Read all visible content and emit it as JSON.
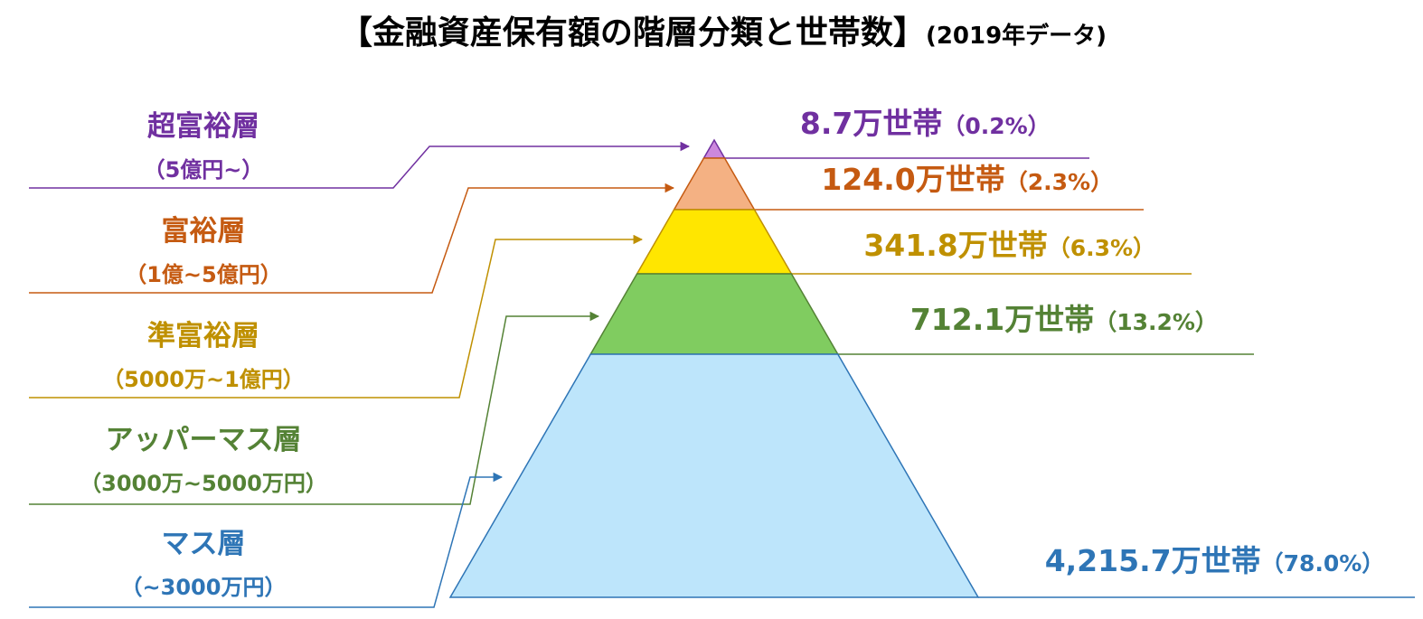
{
  "title": "【金融資産保有額の階層分類と世帯数】",
  "subtitle": "(2019年データ)",
  "layers": [
    {
      "name": "超富裕層",
      "range": "（5億円~）",
      "households": "8.7万世帯",
      "share": "（0.2%）",
      "color": "#7030a0",
      "fill": "#cc88dd"
    },
    {
      "name": "富裕層",
      "range": "（1億~5億円）",
      "households": "124.0万世帯",
      "share": "（2.3%）",
      "color": "#c55a11",
      "fill": "#f4b183"
    },
    {
      "name": "準富裕層",
      "range": "（5000万~1億円）",
      "households": "341.8万世帯",
      "share": "（6.3%）",
      "color": "#bf9000",
      "fill": "#ffe600"
    },
    {
      "name": "アッパーマス層",
      "range": "（3000万~5000万円）",
      "households": "712.1万世帯",
      "share": "（13.2%）",
      "color": "#548235",
      "fill": "#80cc60"
    },
    {
      "name": "マス層",
      "range": "（~3000万円）",
      "households": "4,215.7万世帯",
      "share": "（78.0%）",
      "color": "#2e75b6",
      "fill": "#bde5fb"
    }
  ]
}
